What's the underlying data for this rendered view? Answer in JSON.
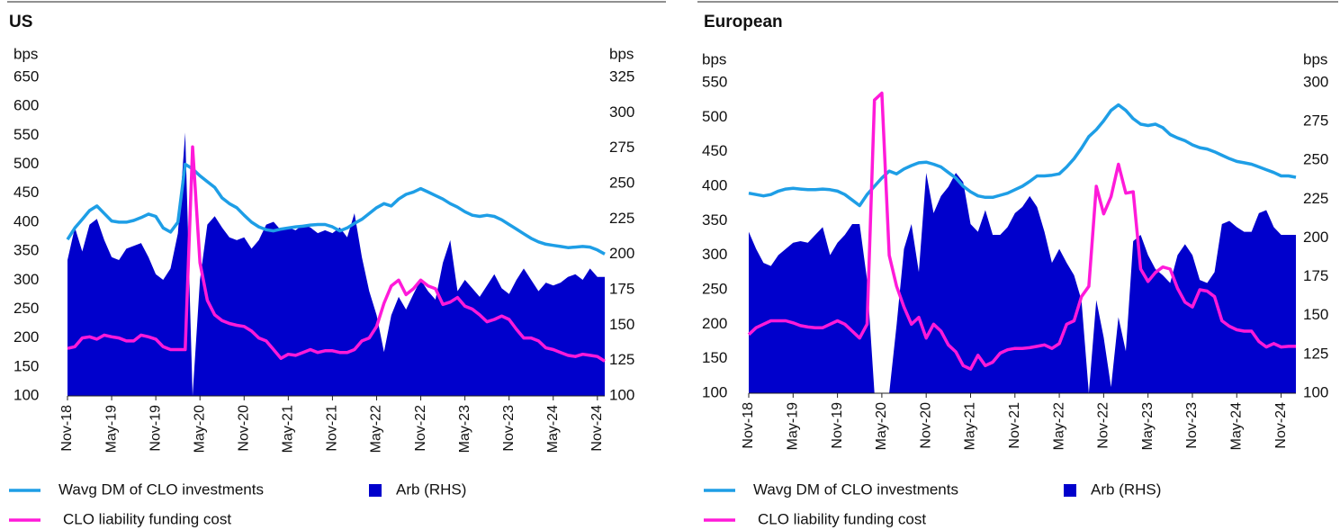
{
  "chart_data": [
    {
      "type": "line",
      "title": "US",
      "ylabel": "bps",
      "y2label": "bps",
      "categories": [
        "Nov-18",
        null,
        null,
        null,
        null,
        null,
        "May-19",
        null,
        null,
        null,
        null,
        null,
        "Nov-19",
        null,
        null,
        null,
        null,
        null,
        "May-20",
        null,
        null,
        null,
        null,
        null,
        "Nov-20",
        null,
        null,
        null,
        null,
        null,
        "May-21",
        null,
        null,
        null,
        null,
        null,
        "Nov-21",
        null,
        null,
        null,
        null,
        null,
        "May-22",
        null,
        null,
        null,
        null,
        null,
        "Nov-22",
        null,
        null,
        null,
        null,
        null,
        "May-23",
        null,
        null,
        null,
        null,
        null,
        "Nov-23",
        null,
        null,
        null,
        null,
        null,
        "May-24",
        null,
        null,
        null,
        null,
        null,
        "Nov-24",
        null
      ],
      "ylim": [
        100,
        650
      ],
      "yticks": [
        100,
        150,
        200,
        250,
        300,
        350,
        400,
        450,
        500,
        550,
        600,
        650
      ],
      "y2lim": [
        100,
        325
      ],
      "y2ticks": [
        100,
        125,
        150,
        175,
        200,
        225,
        250,
        275,
        300,
        325
      ],
      "series": [
        {
          "name": "Wavg DM of CLO investments",
          "kind": "line",
          "color": "#1e9ee6",
          "values": [
            370,
            390,
            405,
            420,
            428,
            415,
            402,
            400,
            400,
            403,
            408,
            414,
            410,
            390,
            383,
            400,
            500,
            492,
            480,
            470,
            460,
            442,
            432,
            425,
            412,
            400,
            392,
            387,
            385,
            388,
            390,
            392,
            393,
            395,
            396,
            396,
            392,
            385,
            390,
            398,
            405,
            415,
            425,
            432,
            428,
            440,
            448,
            452,
            458,
            452,
            446,
            440,
            432,
            426,
            418,
            412,
            410,
            412,
            410,
            404,
            396,
            388,
            380,
            372,
            366,
            362,
            360,
            358,
            356,
            357,
            358,
            357,
            352,
            345
          ]
        },
        {
          "name": "Arb (RHS)",
          "kind": "area",
          "axis": "y2",
          "color": "#0000cc",
          "values": [
            196,
            219,
            202,
            221,
            225,
            210,
            198,
            196,
            204,
            206,
            208,
            198,
            186,
            182,
            190,
            215,
            286,
            100,
            182,
            221,
            227,
            219,
            212,
            210,
            212,
            204,
            210,
            221,
            223,
            217,
            219,
            217,
            221,
            219,
            215,
            217,
            215,
            219,
            212,
            229,
            198,
            174,
            157,
            131,
            157,
            170,
            161,
            172,
            182,
            174,
            168,
            194,
            210,
            174,
            182,
            176,
            170,
            178,
            186,
            176,
            172,
            182,
            190,
            182,
            174,
            180,
            178,
            180,
            184,
            186,
            182,
            190,
            184,
            184
          ]
        },
        {
          "name": "CLO liability funding cost",
          "kind": "line",
          "color": "#ff1ad9",
          "values": [
            182,
            185,
            200,
            202,
            198,
            205,
            202,
            200,
            195,
            195,
            205,
            202,
            198,
            185,
            180,
            180,
            180,
            530,
            330,
            265,
            240,
            230,
            225,
            222,
            220,
            212,
            200,
            195,
            180,
            165,
            172,
            170,
            175,
            180,
            175,
            178,
            178,
            175,
            175,
            180,
            195,
            200,
            220,
            260,
            290,
            300,
            275,
            285,
            300,
            290,
            285,
            258,
            262,
            270,
            255,
            250,
            240,
            228,
            232,
            238,
            232,
            215,
            200,
            200,
            195,
            183,
            180,
            175,
            170,
            168,
            172,
            170,
            168,
            160
          ]
        }
      ]
    },
    {
      "type": "line",
      "title": "European",
      "ylabel": "bps",
      "y2label": "bps",
      "categories": [
        "Nov-18",
        null,
        null,
        null,
        null,
        null,
        "May-19",
        null,
        null,
        null,
        null,
        null,
        "Nov-19",
        null,
        null,
        null,
        null,
        null,
        "May-20",
        null,
        null,
        null,
        null,
        null,
        "Nov-20",
        null,
        null,
        null,
        null,
        null,
        "May-21",
        null,
        null,
        null,
        null,
        null,
        "Nov-21",
        null,
        null,
        null,
        null,
        null,
        "May-22",
        null,
        null,
        null,
        null,
        null,
        "Nov-22",
        null,
        null,
        null,
        null,
        null,
        "May-23",
        null,
        null,
        null,
        null,
        null,
        "Nov-23",
        null,
        null,
        null,
        null,
        null,
        "May-24",
        null,
        null,
        null,
        null,
        null,
        "Nov-24",
        null,
        null
      ],
      "ylim": [
        100,
        550
      ],
      "yticks": [
        100,
        150,
        200,
        250,
        300,
        350,
        400,
        450,
        500,
        550
      ],
      "y2lim": [
        100,
        300
      ],
      "y2ticks": [
        100,
        125,
        150,
        175,
        200,
        225,
        250,
        275,
        300
      ],
      "series": [
        {
          "name": "Wavg DM of CLO investments",
          "kind": "line",
          "color": "#1e9ee6",
          "values": [
            390,
            388,
            386,
            388,
            393,
            396,
            397,
            396,
            395,
            395,
            396,
            395,
            393,
            388,
            380,
            372,
            388,
            400,
            412,
            422,
            418,
            425,
            430,
            434,
            435,
            432,
            428,
            420,
            412,
            400,
            392,
            386,
            384,
            384,
            387,
            390,
            395,
            400,
            407,
            415,
            415,
            416,
            418,
            428,
            440,
            455,
            472,
            482,
            495,
            510,
            518,
            510,
            498,
            490,
            488,
            490,
            485,
            475,
            470,
            466,
            460,
            456,
            454,
            450,
            445,
            440,
            436,
            434,
            432,
            428,
            424,
            420,
            415,
            415,
            413
          ]
        },
        {
          "name": "Arb (RHS)",
          "kind": "area",
          "axis": "y2",
          "color": "#0000cc",
          "values": [
            204,
            193,
            184,
            182,
            189,
            193,
            197,
            198,
            197,
            202,
            207,
            189,
            197,
            202,
            209,
            209,
            173,
            100,
            100,
            100,
            144,
            193,
            209,
            178,
            242,
            216,
            227,
            233,
            242,
            236,
            209,
            204,
            218,
            202,
            202,
            207,
            216,
            220,
            227,
            220,
            204,
            184,
            193,
            184,
            176,
            160,
            100,
            160,
            136,
            104,
            149,
            127,
            198,
            202,
            189,
            180,
            176,
            171,
            189,
            196,
            189,
            173,
            171,
            178,
            209,
            211,
            207,
            204,
            204,
            216,
            218,
            207,
            202,
            202,
            202
          ]
        },
        {
          "name": "CLO liability funding cost",
          "kind": "line",
          "color": "#ff1ad9",
          "values": [
            185,
            195,
            200,
            205,
            205,
            205,
            202,
            198,
            196,
            195,
            195,
            200,
            205,
            200,
            190,
            180,
            200,
            525,
            535,
            300,
            255,
            225,
            200,
            210,
            180,
            200,
            190,
            170,
            160,
            140,
            135,
            155,
            140,
            145,
            158,
            163,
            165,
            165,
            166,
            168,
            170,
            165,
            172,
            200,
            205,
            240,
            255,
            400,
            360,
            385,
            432,
            390,
            392,
            280,
            262,
            275,
            283,
            280,
            252,
            232,
            225,
            250,
            248,
            240,
            205,
            197,
            192,
            190,
            190,
            175,
            167,
            172,
            167,
            168,
            168
          ]
        }
      ]
    }
  ]
}
